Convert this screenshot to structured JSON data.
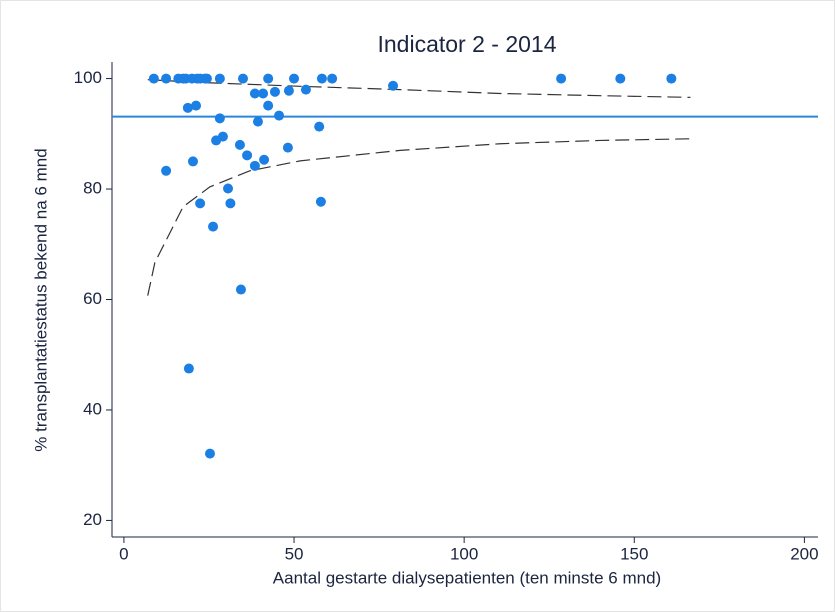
{
  "chart_data": {
    "type": "scatter",
    "title": "Indicator 2 - 2014",
    "xlabel": "Aantal gestarte dialysepatienten (ten minste 6 mnd)",
    "ylabel": "% transplantatiestatus bekend na 6 mnd",
    "xlim": [
      -3.5,
      204
    ],
    "ylim": [
      17,
      103
    ],
    "xticks": [
      0,
      50,
      100,
      150,
      200
    ],
    "yticks": [
      20,
      40,
      60,
      80,
      100
    ],
    "reference_line": 93.1,
    "reference_color": "#2a86dc",
    "points": {
      "color": "#1c7fe3",
      "x": [
        8.8,
        12.4,
        16,
        17.4,
        18.2,
        20,
        21.5,
        22.4,
        23.8,
        24.4,
        28.2,
        35,
        42.4,
        50,
        58.2,
        61.2,
        128.5,
        145.9,
        160.9,
        12.4,
        20.3,
        18.8,
        21.2,
        28.2,
        29.1,
        27.1,
        34.1,
        36.2,
        39.4,
        38.5,
        40.9,
        42.4,
        44.4,
        45.6,
        48.5,
        53.5,
        48.2,
        41.2,
        38.5,
        30.6,
        22.4,
        31.3,
        26.2,
        57.9,
        57.4,
        79.1,
        34.4,
        19.1,
        25.3
      ],
      "values": [
        100,
        100,
        100,
        100,
        100,
        100,
        100,
        100,
        100,
        100,
        100,
        100,
        100,
        100,
        100,
        100,
        100,
        100,
        100,
        83.3,
        85,
        94.7,
        95.1,
        92.8,
        89.5,
        88.8,
        88,
        86.1,
        92.2,
        97.3,
        97.3,
        95.1,
        97.6,
        93.3,
        97.8,
        98,
        87.5,
        85.3,
        84.2,
        80.1,
        77.4,
        77.4,
        73.2,
        77.7,
        91.3,
        98.7,
        61.8,
        47.5,
        32.1
      ]
    },
    "upper_limit": {
      "color": "#333333",
      "x": [
        7,
        22.4,
        51.8,
        81.2,
        110.6,
        140,
        166.5
      ],
      "values": [
        99.8,
        99.3,
        98.6,
        98,
        97.3,
        96.9,
        96.6
      ]
    },
    "lower_limit": {
      "color": "#333333",
      "x": [
        7,
        9.1,
        17.4,
        25.3,
        37,
        51.8,
        81.2,
        110.6,
        140,
        166.5
      ],
      "values": [
        60.7,
        66.7,
        76.8,
        80.4,
        83.3,
        85.1,
        87,
        88.2,
        88.8,
        89.1
      ]
    }
  }
}
